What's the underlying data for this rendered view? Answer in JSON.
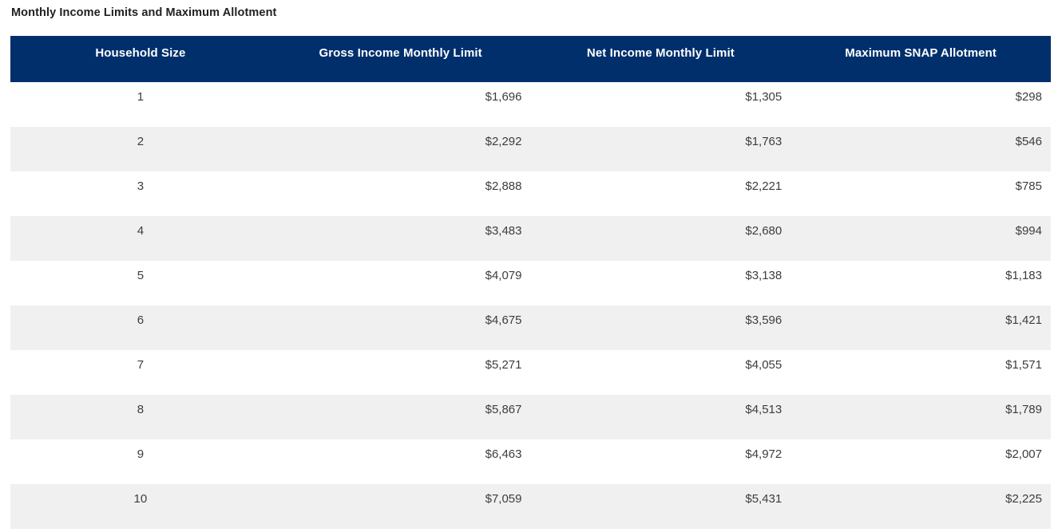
{
  "page": {
    "title": "Monthly Income Limits and Maximum Allotment"
  },
  "colors": {
    "header_bg": "#002F6C",
    "header_text": "#FFFFFF",
    "row_alt_bg": "#F0F0F0",
    "row_bg": "#FFFFFF",
    "body_text": "#3D3D3F",
    "title_text": "#212226"
  },
  "table": {
    "columns": [
      "Household Size",
      "Gross Income Monthly Limit",
      "Net Income Monthly Limit",
      "Maximum SNAP Allotment"
    ],
    "rows": [
      {
        "household_size": "1",
        "gross_income_monthly_limit": "$1,696",
        "net_income_monthly_limit": "$1,305",
        "maximum_snap_allotment": "$298"
      },
      {
        "household_size": "2",
        "gross_income_monthly_limit": "$2,292",
        "net_income_monthly_limit": "$1,763",
        "maximum_snap_allotment": "$546"
      },
      {
        "household_size": "3",
        "gross_income_monthly_limit": "$2,888",
        "net_income_monthly_limit": "$2,221",
        "maximum_snap_allotment": "$785"
      },
      {
        "household_size": "4",
        "gross_income_monthly_limit": "$3,483",
        "net_income_monthly_limit": "$2,680",
        "maximum_snap_allotment": "$994"
      },
      {
        "household_size": "5",
        "gross_income_monthly_limit": "$4,079",
        "net_income_monthly_limit": "$3,138",
        "maximum_snap_allotment": "$1,183"
      },
      {
        "household_size": "6",
        "gross_income_monthly_limit": "$4,675",
        "net_income_monthly_limit": "$3,596",
        "maximum_snap_allotment": "$1,421"
      },
      {
        "household_size": "7",
        "gross_income_monthly_limit": "$5,271",
        "net_income_monthly_limit": "$4,055",
        "maximum_snap_allotment": "$1,571"
      },
      {
        "household_size": "8",
        "gross_income_monthly_limit": "$5,867",
        "net_income_monthly_limit": "$4,513",
        "maximum_snap_allotment": "$1,789"
      },
      {
        "household_size": "9",
        "gross_income_monthly_limit": "$6,463",
        "net_income_monthly_limit": "$4,972",
        "maximum_snap_allotment": "$2,007"
      },
      {
        "household_size": "10",
        "gross_income_monthly_limit": "$7,059",
        "net_income_monthly_limit": "$5,431",
        "maximum_snap_allotment": "$2,225"
      }
    ]
  },
  "chart_data": {
    "type": "table",
    "title": "Monthly Income Limits and Maximum Allotment",
    "columns": [
      "Household Size",
      "Gross Income Monthly Limit",
      "Net Income Monthly Limit",
      "Maximum SNAP Allotment"
    ],
    "rows": [
      [
        1,
        1696,
        1305,
        298
      ],
      [
        2,
        2292,
        1763,
        546
      ],
      [
        3,
        2888,
        2221,
        785
      ],
      [
        4,
        3483,
        2680,
        994
      ],
      [
        5,
        4079,
        3138,
        1183
      ],
      [
        6,
        4675,
        3596,
        1421
      ],
      [
        7,
        5271,
        4055,
        1571
      ],
      [
        8,
        5867,
        4513,
        1789
      ],
      [
        9,
        6463,
        4972,
        2007
      ],
      [
        10,
        7059,
        5431,
        2225
      ]
    ]
  }
}
